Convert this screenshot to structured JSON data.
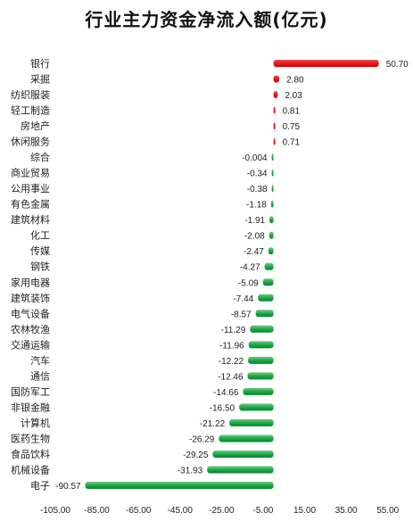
{
  "chart_data": {
    "type": "bar",
    "orientation": "horizontal",
    "title": "行业主力资金净流入额(亿元)",
    "xlabel": "",
    "ylabel": "",
    "xlim": [
      -105,
      65
    ],
    "x_ticks": [
      "-105.00",
      "-85.00",
      "-65.00",
      "-45.00",
      "-25.00",
      "-5.00",
      "15.00",
      "35.00",
      "55.00"
    ],
    "tick_values": [
      -105,
      -85,
      -65,
      -45,
      -25,
      -5,
      15,
      35,
      55
    ],
    "grid": false,
    "legend": "none",
    "colors": {
      "positive": "#e31a1c",
      "negative": "#1fa84a"
    },
    "categories": [
      "银行",
      "采掘",
      "纺织服装",
      "轻工制造",
      "房地产",
      "休闲服务",
      "综合",
      "商业贸易",
      "公用事业",
      "有色金属",
      "建筑材料",
      "化工",
      "传媒",
      "钢铁",
      "家用电器",
      "建筑装饰",
      "电气设备",
      "农林牧渔",
      "交通运输",
      "汽车",
      "通信",
      "国防军工",
      "非银金融",
      "计算机",
      "医药生物",
      "食品饮料",
      "机械设备",
      "电子"
    ],
    "values": [
      50.7,
      2.8,
      2.03,
      0.81,
      0.75,
      0.71,
      -0.004,
      -0.34,
      -0.38,
      -1.18,
      -1.91,
      -2.08,
      -2.47,
      -4.27,
      -5.09,
      -7.44,
      -8.57,
      -11.29,
      -11.96,
      -12.22,
      -12.46,
      -14.66,
      -16.5,
      -21.22,
      -26.29,
      -29.25,
      -31.93,
      -90.57
    ],
    "value_labels": [
      "50.70",
      "2.80",
      "2.03",
      "0.81",
      "0.75",
      "0.71",
      "-0.004",
      "-0.34",
      "-0.38",
      "-1.18",
      "-1.91",
      "-2.08",
      "-2.47",
      "-4.27",
      "-5.09",
      "-7.44",
      "-8.57",
      "-11.29",
      "-11.96",
      "-12.22",
      "-12.46",
      "-14.66",
      "-16.50",
      "-21.22",
      "-26.29",
      "-29.25",
      "-31.93",
      "-90.57"
    ]
  }
}
